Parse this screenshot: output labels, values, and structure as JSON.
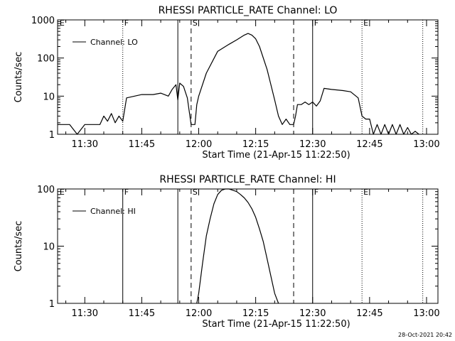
{
  "footer_timestamp": "28-Oct-2021 20:42",
  "chart_data": [
    {
      "type": "line",
      "title": "RHESSI PARTICLE_RATE Channel: LO",
      "xlabel": "Start Time (21-Apr-15 11:22:50)",
      "ylabel": "Counts/sec",
      "yscale": "log",
      "ylim": [
        1,
        1000
      ],
      "xlim": [
        "11:22:50",
        "13:03:00"
      ],
      "x_ticks": [
        "11:30",
        "11:45",
        "12:00",
        "12:15",
        "12:30",
        "12:45",
        "13:00"
      ],
      "y_ticks": [
        "1",
        "10",
        "100",
        "1000"
      ],
      "legend": {
        "label": "Channel: LO",
        "placement": "top-left"
      },
      "markers": [
        {
          "time": "11:23:00",
          "style": "none",
          "label": "E"
        },
        {
          "time": "11:40:00",
          "style": "dotted",
          "label": "F"
        },
        {
          "time": "11:54:30",
          "style": "solid",
          "label": ""
        },
        {
          "time": "11:58:00",
          "style": "dashed",
          "label": "S"
        },
        {
          "time": "12:25:00",
          "style": "dashed",
          "label": ""
        },
        {
          "time": "12:30:00",
          "style": "solid",
          "label": "F"
        },
        {
          "time": "12:43:00",
          "style": "dotted",
          "label": "E"
        },
        {
          "time": "12:59:00",
          "style": "dotted",
          "label": ""
        }
      ],
      "series": [
        {
          "values_x": [
            "11:22:50",
            "11:26:00",
            "11:28:00",
            "11:30:00",
            "11:34:00",
            "11:35:00",
            "11:36:00",
            "11:37:00",
            "11:38:00",
            "11:39:00",
            "11:40:00",
            "11:41:00",
            "11:45:00",
            "11:48:00",
            "11:50:00",
            "11:52:00",
            "11:53:00",
            "11:54:00",
            "11:54:30",
            "11:55:00",
            "11:56:00",
            "11:57:00",
            "11:58:00",
            "11:59:00",
            "11:59:30",
            "12:00:00",
            "12:02:00",
            "12:05:00",
            "12:08:00",
            "12:10:00",
            "12:12:00",
            "12:13:00",
            "12:14:00",
            "12:15:00",
            "12:16:00",
            "12:18:00",
            "12:20:00",
            "12:21:00",
            "12:22:00",
            "12:23:00",
            "12:24:00",
            "12:25:00",
            "12:25:30",
            "12:26:00",
            "12:27:00",
            "12:28:00",
            "12:29:00",
            "12:30:00",
            "12:31:00",
            "12:32:00",
            "12:33:00",
            "12:35:00",
            "12:38:00",
            "12:40:00",
            "12:42:00",
            "12:43:00",
            "12:44:00",
            "12:45:00",
            "12:46:00",
            "12:47:00",
            "12:48:00",
            "12:49:00",
            "12:50:00",
            "12:51:00",
            "12:52:00",
            "12:53:00",
            "12:54:00",
            "12:55:00",
            "12:56:00",
            "12:57:00",
            "12:58:00"
          ],
          "values_y": [
            1.8,
            1.8,
            1.0,
            1.8,
            1.8,
            3.0,
            2.2,
            3.5,
            2.0,
            3.0,
            2.2,
            9.0,
            11,
            11,
            12,
            10,
            15,
            20,
            8.0,
            22,
            18,
            9.0,
            1.8,
            1.8,
            6.0,
            10,
            40,
            150,
            230,
            300,
            400,
            440,
            400,
            320,
            200,
            50,
            8.0,
            3.0,
            1.8,
            2.5,
            1.8,
            1.8,
            3.0,
            6.0,
            6.0,
            7.0,
            6.0,
            7.0,
            5.5,
            7.5,
            16,
            15,
            14,
            13,
            9.0,
            3.0,
            2.5,
            2.5,
            1.0,
            1.8,
            1.0,
            1.8,
            1.0,
            1.8,
            1.0,
            1.8,
            1.0,
            1.5,
            1.0,
            1.2,
            1.0
          ]
        }
      ]
    },
    {
      "type": "line",
      "title": "RHESSI PARTICLE_RATE Channel: HI",
      "xlabel": "Start Time (21-Apr-15 11:22:50)",
      "ylabel": "Counts/sec",
      "yscale": "log",
      "ylim": [
        1,
        100
      ],
      "xlim": [
        "11:22:50",
        "13:03:00"
      ],
      "x_ticks": [
        "11:30",
        "11:45",
        "12:00",
        "12:15",
        "12:30",
        "12:45",
        "13:00"
      ],
      "y_ticks": [
        "1",
        "10",
        "100"
      ],
      "legend": {
        "label": "Channel: HI",
        "placement": "top-left"
      },
      "markers": [
        {
          "time": "11:23:00",
          "style": "none",
          "label": "E"
        },
        {
          "time": "11:40:00",
          "style": "solid",
          "label": "F"
        },
        {
          "time": "11:54:30",
          "style": "solid",
          "label": ""
        },
        {
          "time": "11:58:00",
          "style": "dashed",
          "label": "S"
        },
        {
          "time": "12:25:00",
          "style": "dashed",
          "label": ""
        },
        {
          "time": "12:30:00",
          "style": "solid",
          "label": "F"
        },
        {
          "time": "12:43:00",
          "style": "dotted",
          "label": "E"
        },
        {
          "time": "12:59:00",
          "style": "dotted",
          "label": ""
        }
      ],
      "series": [
        {
          "values_x": [
            "11:59:30",
            "12:00:00",
            "12:01:00",
            "12:02:00",
            "12:03:00",
            "12:04:00",
            "12:05:00",
            "12:06:00",
            "12:07:00",
            "12:08:00",
            "12:09:00",
            "12:10:00",
            "12:11:00",
            "12:12:00",
            "12:13:00",
            "12:14:00",
            "12:15:00",
            "12:16:00",
            "12:17:00",
            "12:18:00",
            "12:19:00",
            "12:20:00",
            "12:21:00"
          ],
          "values_y": [
            1.0,
            1.5,
            5.0,
            15,
            30,
            55,
            80,
            95,
            100,
            100,
            95,
            90,
            80,
            70,
            58,
            45,
            32,
            20,
            12,
            6.0,
            3.0,
            1.5,
            1.0
          ]
        }
      ]
    }
  ]
}
